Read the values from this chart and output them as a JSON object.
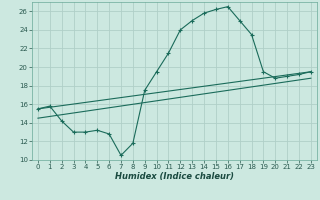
{
  "background_color": "#cce8e0",
  "grid_color": "#b0cfc8",
  "line_color": "#1a6b5a",
  "xlabel": "Humidex (Indice chaleur)",
  "xlim": [
    -0.5,
    23.5
  ],
  "ylim": [
    10,
    27
  ],
  "yticks": [
    10,
    12,
    14,
    16,
    18,
    20,
    22,
    24,
    26
  ],
  "xticks": [
    0,
    1,
    2,
    3,
    4,
    5,
    6,
    7,
    8,
    9,
    10,
    11,
    12,
    13,
    14,
    15,
    16,
    17,
    18,
    19,
    20,
    21,
    22,
    23
  ],
  "line1_x": [
    0,
    1,
    2,
    3,
    4,
    5,
    6,
    7,
    8,
    9,
    10,
    11,
    12,
    13,
    14,
    15,
    16,
    17,
    18,
    19,
    20,
    21,
    22,
    23
  ],
  "line1_y": [
    15.5,
    15.8,
    14.2,
    13.0,
    13.0,
    13.2,
    12.8,
    10.5,
    11.8,
    17.5,
    19.5,
    21.5,
    24.0,
    25.0,
    25.8,
    26.2,
    26.5,
    25.0,
    23.5,
    19.5,
    18.8,
    19.0,
    19.2,
    19.5
  ],
  "line2_x": [
    0,
    23
  ],
  "line2_y": [
    15.5,
    19.5
  ],
  "line3_x": [
    0,
    23
  ],
  "line3_y": [
    14.5,
    18.8
  ]
}
